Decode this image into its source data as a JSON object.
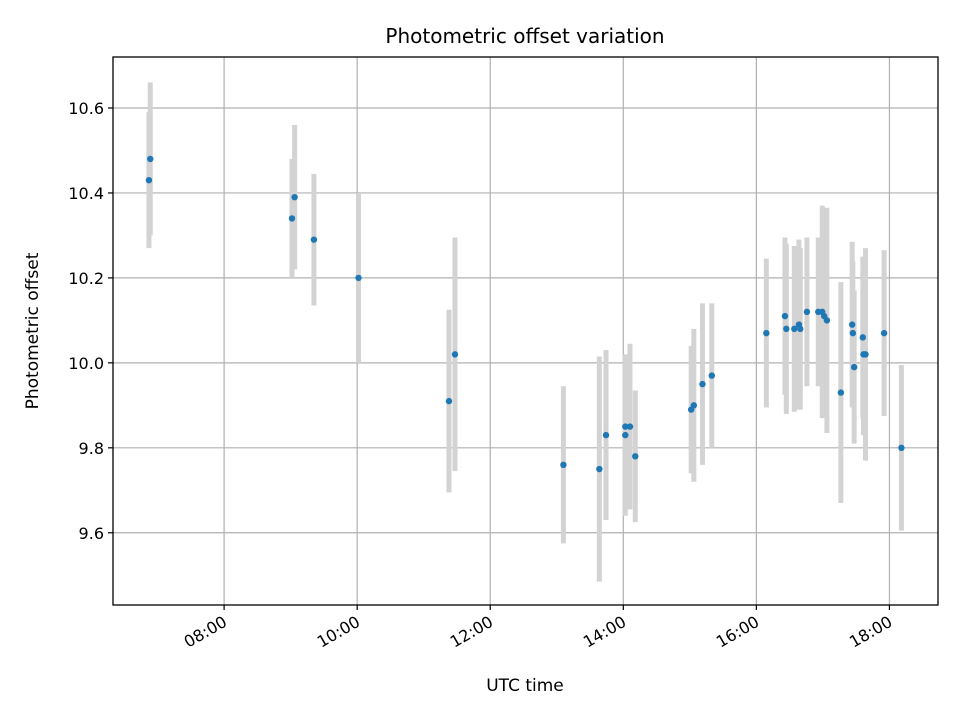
{
  "chart_data": {
    "type": "scatter",
    "title": "Photometric offset variation",
    "xlabel": "UTC time",
    "ylabel": "Photometric offset",
    "x_unit": "hours (UTC)",
    "xlim": [
      6.33,
      18.73
    ],
    "ylim": [
      9.43,
      10.72
    ],
    "x_ticks": [
      {
        "value": 8,
        "label": "08:00"
      },
      {
        "value": 10,
        "label": "10:00"
      },
      {
        "value": 12,
        "label": "12:00"
      },
      {
        "value": 14,
        "label": "14:00"
      },
      {
        "value": 16,
        "label": "16:00"
      },
      {
        "value": 18,
        "label": "18:00"
      }
    ],
    "y_ticks": [
      {
        "value": 9.6,
        "label": "9.6"
      },
      {
        "value": 9.8,
        "label": "9.8"
      },
      {
        "value": 10.0,
        "label": "10.0"
      },
      {
        "value": 10.2,
        "label": "10.2"
      },
      {
        "value": 10.4,
        "label": "10.4"
      },
      {
        "value": 10.6,
        "label": "10.6"
      }
    ],
    "grid": true,
    "colors": {
      "points": "#1f77b4",
      "errorbars": "#d3d3d3",
      "grid": "#b0b0b0"
    },
    "points": [
      {
        "x": 6.87,
        "y": 10.43,
        "err": 0.16
      },
      {
        "x": 6.89,
        "y": 10.48,
        "err": 0.18
      },
      {
        "x": 9.02,
        "y": 10.34,
        "err": 0.14
      },
      {
        "x": 9.06,
        "y": 10.39,
        "err": 0.17
      },
      {
        "x": 9.35,
        "y": 10.29,
        "err": 0.155
      },
      {
        "x": 10.02,
        "y": 10.2,
        "err": 0.2
      },
      {
        "x": 11.38,
        "y": 9.91,
        "err": 0.215
      },
      {
        "x": 11.47,
        "y": 10.02,
        "err": 0.275
      },
      {
        "x": 13.1,
        "y": 9.76,
        "err": 0.185
      },
      {
        "x": 13.64,
        "y": 9.75,
        "err": 0.265
      },
      {
        "x": 13.74,
        "y": 9.83,
        "err": 0.2
      },
      {
        "x": 14.03,
        "y": 9.83,
        "err": 0.19
      },
      {
        "x": 14.03,
        "y": 9.85,
        "err": 0.17
      },
      {
        "x": 14.1,
        "y": 9.85,
        "err": 0.195
      },
      {
        "x": 14.18,
        "y": 9.78,
        "err": 0.155
      },
      {
        "x": 15.02,
        "y": 9.89,
        "err": 0.15
      },
      {
        "x": 15.06,
        "y": 9.9,
        "err": 0.18
      },
      {
        "x": 15.19,
        "y": 9.95,
        "err": 0.19
      },
      {
        "x": 15.33,
        "y": 9.97,
        "err": 0.17
      },
      {
        "x": 16.15,
        "y": 10.07,
        "err": 0.175
      },
      {
        "x": 16.43,
        "y": 10.11,
        "err": 0.185
      },
      {
        "x": 16.45,
        "y": 10.08,
        "err": 0.2
      },
      {
        "x": 16.57,
        "y": 10.08,
        "err": 0.195
      },
      {
        "x": 16.64,
        "y": 10.09,
        "err": 0.2
      },
      {
        "x": 16.66,
        "y": 10.08,
        "err": 0.19
      },
      {
        "x": 16.76,
        "y": 10.12,
        "err": 0.175
      },
      {
        "x": 16.93,
        "y": 10.12,
        "err": 0.175
      },
      {
        "x": 16.99,
        "y": 10.12,
        "err": 0.25
      },
      {
        "x": 17.02,
        "y": 10.11,
        "err": 0.24
      },
      {
        "x": 17.06,
        "y": 10.1,
        "err": 0.265
      },
      {
        "x": 17.27,
        "y": 9.93,
        "err": 0.26
      },
      {
        "x": 17.44,
        "y": 10.09,
        "err": 0.195
      },
      {
        "x": 17.45,
        "y": 10.07,
        "err": 0.17
      },
      {
        "x": 17.47,
        "y": 9.99,
        "err": 0.18
      },
      {
        "x": 17.6,
        "y": 10.06,
        "err": 0.19
      },
      {
        "x": 17.61,
        "y": 10.02,
        "err": 0.19
      },
      {
        "x": 17.64,
        "y": 10.02,
        "err": 0.25
      },
      {
        "x": 17.92,
        "y": 10.07,
        "err": 0.195
      },
      {
        "x": 18.18,
        "y": 9.8,
        "err": 0.195
      }
    ]
  }
}
